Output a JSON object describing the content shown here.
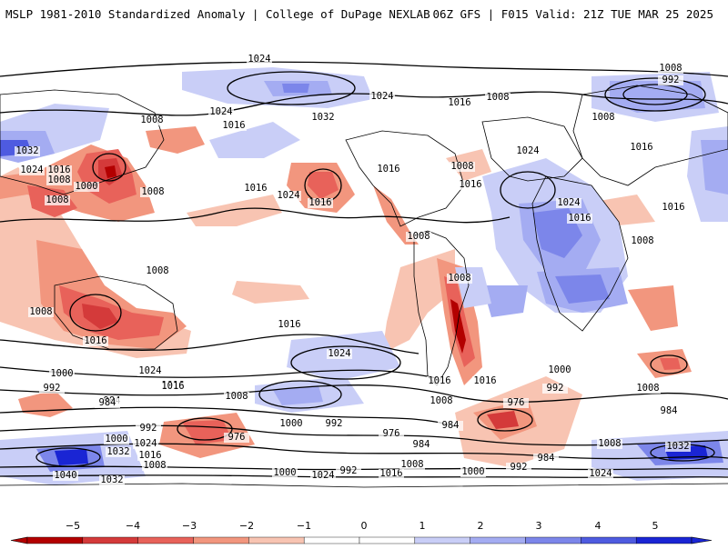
{
  "header": {
    "left": "MSLP 1981-2010 Standardized Anomaly | College of DuPage NEXLAB",
    "right": "06Z GFS | F015 Valid: 21Z TUE MAR 25 2025"
  },
  "colors": {
    "neg5": "#b30000",
    "neg4": "#d43a3a",
    "neg3": "#e8625a",
    "neg2": "#f2967e",
    "neg1": "#f8c4b2",
    "zero": "#ffffff",
    "pos1": "#c9cef7",
    "pos2": "#a4acf2",
    "pos3": "#7c86ea",
    "pos4": "#4e5be0",
    "pos5": "#1a25d4"
  },
  "colorbar": {
    "ticks": [
      "−5",
      "−4",
      "−3",
      "−2",
      "−1",
      "0",
      "1",
      "2",
      "3",
      "4",
      "5"
    ]
  },
  "contour_labels": [
    "1024",
    "1008",
    "992",
    "1024",
    "1008",
    "1016",
    "1008",
    "1024",
    "1032",
    "1016",
    "1008",
    "1008",
    "1032",
    "1024",
    "1016",
    "1008",
    "1000",
    "1008",
    "1016",
    "1016",
    "1024",
    "1016",
    "1016",
    "1008",
    "1016",
    "1024",
    "1016",
    "1008",
    "1024",
    "1016",
    "1008",
    "1008",
    "1008",
    "1016",
    "1016",
    "1008",
    "1024",
    "1016",
    "1016",
    "1008",
    "1016",
    "1000",
    "1024",
    "1016",
    "992",
    "1008",
    "984",
    "1000",
    "992",
    "984",
    "976",
    "992",
    "1000",
    "984",
    "1024",
    "1016",
    "1032",
    "1008",
    "1040",
    "1032",
    "1000",
    "992",
    "1024",
    "1016",
    "1008",
    "976",
    "1000",
    "992",
    "984",
    "976",
    "984",
    "1000",
    "992",
    "984",
    "1008",
    "1032",
    "1024",
    "1008"
  ]
}
